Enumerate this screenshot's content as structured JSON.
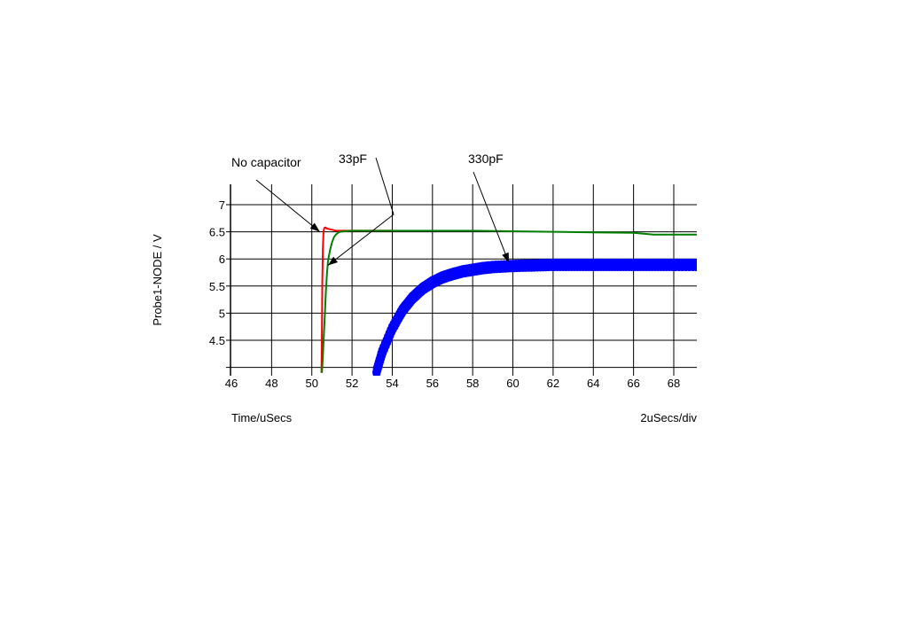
{
  "chart_data": {
    "type": "line",
    "title": "",
    "xlabel": "Time/uSecs",
    "x_scale_note": "2uSecs/div",
    "ylabel": "Probe1-NODE / V",
    "xlim": [
      46,
      69.2
    ],
    "ylim": [
      3.99,
      7.4
    ],
    "x_ticks": [
      46,
      48,
      50,
      52,
      54,
      56,
      58,
      60,
      62,
      64,
      66,
      68
    ],
    "y_ticks": [
      4.5,
      5,
      5.5,
      6,
      6.5,
      7
    ],
    "y_tick_labels": [
      "4.5",
      "5",
      "5.5",
      "6",
      "6.5",
      "7"
    ],
    "grid": true,
    "series": [
      {
        "name": "No capacitor",
        "color": "#ff0000",
        "x": [
          50.48,
          50.5,
          50.52,
          50.55,
          50.58,
          50.62,
          50.68,
          50.75,
          50.85,
          51.0,
          51.2,
          51.5,
          52.0,
          53.0,
          54.0
        ],
        "y": [
          3.9,
          4.6,
          5.5,
          6.2,
          6.5,
          6.57,
          6.58,
          6.56,
          6.55,
          6.54,
          6.52,
          6.52,
          6.52,
          6.52,
          6.52
        ]
      },
      {
        "name": "33pF",
        "color": "#008000",
        "x": [
          50.5,
          50.55,
          50.6,
          50.65,
          50.7,
          50.75,
          50.8,
          50.9,
          51.0,
          51.1,
          51.2,
          51.3,
          51.4,
          51.6,
          52.0,
          54.0,
          56.0,
          58.0,
          60.0,
          62.0,
          64.0,
          66.0,
          67.0,
          69.2
        ],
        "y": [
          3.9,
          4.2,
          4.6,
          5.0,
          5.4,
          5.7,
          5.95,
          6.15,
          6.3,
          6.4,
          6.45,
          6.48,
          6.5,
          6.51,
          6.52,
          6.52,
          6.52,
          6.52,
          6.51,
          6.5,
          6.49,
          6.48,
          6.45,
          6.45
        ]
      },
      {
        "name": "330pF",
        "color": "#0000ff",
        "x": [
          53.2,
          53.5,
          54.0,
          54.5,
          55.0,
          55.5,
          56.0,
          56.5,
          57.0,
          57.5,
          58.0,
          58.5,
          59.0,
          60.0,
          61.0,
          62.0,
          63.0,
          64.0,
          65.0,
          66.0,
          67.0,
          68.0,
          69.2
        ],
        "y": [
          3.9,
          4.28,
          4.72,
          5.05,
          5.28,
          5.45,
          5.57,
          5.66,
          5.72,
          5.77,
          5.8,
          5.83,
          5.85,
          5.87,
          5.88,
          5.89,
          5.89,
          5.89,
          5.89,
          5.89,
          5.89,
          5.89,
          5.89
        ],
        "noise_band": 0.12
      }
    ],
    "annotations": [
      {
        "text": "No capacitor",
        "arrow_to": [
          50.4,
          6.5
        ]
      },
      {
        "text": "33pF",
        "arrow_to": [
          50.8,
          5.88
        ]
      },
      {
        "text": "330pF",
        "arrow_to": [
          59.8,
          5.93
        ]
      }
    ]
  }
}
